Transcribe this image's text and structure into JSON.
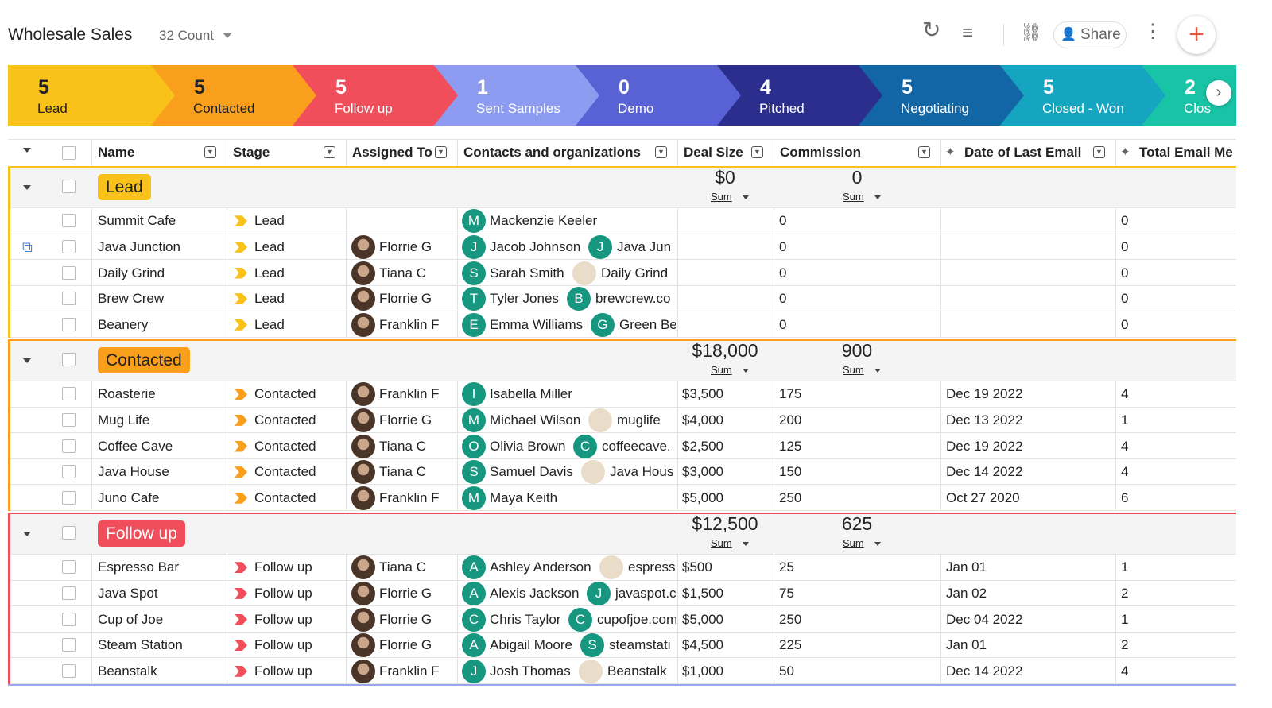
{
  "header": {
    "title": "Wholesale Sales",
    "count": "32 Count",
    "share": "Share"
  },
  "pipeline": [
    {
      "count": "5",
      "label": "Lead",
      "color": "#f8c21b"
    },
    {
      "count": "5",
      "label": "Contacted",
      "color": "#fa9f1c"
    },
    {
      "count": "5",
      "label": "Follow up",
      "color": "#f14e5c"
    },
    {
      "count": "1",
      "label": "Sent Samples",
      "color": "#8d9cf0"
    },
    {
      "count": "0",
      "label": "Demo",
      "color": "#5962d4"
    },
    {
      "count": "4",
      "label": "Pitched",
      "color": "#2b2e8d"
    },
    {
      "count": "5",
      "label": "Negotiating",
      "color": "#1366a5"
    },
    {
      "count": "5",
      "label": "Closed - Won",
      "color": "#15a5c0"
    },
    {
      "count": "2",
      "label": "Clos",
      "color": "#19c3a6"
    }
  ],
  "table": {
    "columns": [
      "Name",
      "Stage",
      "Assigned To",
      "Contacts and organizations",
      "Deal Size",
      "Commission",
      "Date of Last Email",
      "Total Email Me"
    ],
    "groups": [
      {
        "name": "Lead",
        "color": "#f8c21b",
        "deal_sum": "$0",
        "commission_sum": "0",
        "sum_label": "Sum",
        "rows": [
          {
            "name": "Summit Cafe",
            "stage": "Lead",
            "contact": {
              "initial": "M",
              "name": "Mackenzie Keeler"
            },
            "commission": "0",
            "emails": "0"
          },
          {
            "name": "Java Junction",
            "stage": "Lead",
            "assignee": "Florrie G",
            "contact": {
              "initial": "J",
              "name": "Jacob Johnson"
            },
            "org": {
              "initial": "J",
              "name": "Java Jun"
            },
            "commission": "0",
            "emails": "0"
          },
          {
            "name": "Daily Grind",
            "stage": "Lead",
            "assignee": "Tiana C",
            "contact": {
              "initial": "S",
              "name": "Sarah Smith"
            },
            "org": {
              "name": "Daily Grind"
            },
            "commission": "0",
            "emails": "0"
          },
          {
            "name": "Brew Crew",
            "stage": "Lead",
            "assignee": "Florrie G",
            "contact": {
              "initial": "T",
              "name": "Tyler Jones"
            },
            "org": {
              "initial": "B",
              "name": "brewcrew.co"
            },
            "commission": "0",
            "emails": "0"
          },
          {
            "name": "Beanery",
            "stage": "Lead",
            "assignee": "Franklin F",
            "contact": {
              "initial": "E",
              "name": "Emma Williams"
            },
            "org": {
              "initial": "G",
              "name": "Green Be"
            },
            "commission": "0",
            "emails": "0"
          }
        ]
      },
      {
        "name": "Contacted",
        "color": "#fa9f1c",
        "deal_sum": "$18,000",
        "commission_sum": "900",
        "sum_label": "Sum",
        "rows": [
          {
            "name": "Roasterie",
            "stage": "Contacted",
            "assignee": "Franklin F",
            "contact": {
              "initial": "I",
              "name": "Isabella Miller"
            },
            "deal": "$3,500",
            "commission": "175",
            "date": "Dec 19 2022",
            "emails": "4"
          },
          {
            "name": "Mug Life",
            "stage": "Contacted",
            "assignee": "Florrie G",
            "contact": {
              "initial": "M",
              "name": "Michael Wilson"
            },
            "org": {
              "name": "muglife"
            },
            "deal": "$4,000",
            "commission": "200",
            "date": "Dec 13 2022",
            "emails": "1"
          },
          {
            "name": "Coffee Cave",
            "stage": "Contacted",
            "assignee": "Tiana C",
            "contact": {
              "initial": "O",
              "name": "Olivia Brown"
            },
            "org": {
              "initial": "C",
              "name": "coffeecave."
            },
            "deal": "$2,500",
            "commission": "125",
            "date": "Dec 19 2022",
            "emails": "4"
          },
          {
            "name": "Java House",
            "stage": "Contacted",
            "assignee": "Tiana C",
            "contact": {
              "initial": "S",
              "name": "Samuel Davis"
            },
            "org": {
              "name": "Java Hous"
            },
            "deal": "$3,000",
            "commission": "150",
            "date": "Dec 14 2022",
            "emails": "4"
          },
          {
            "name": "Juno Cafe",
            "stage": "Contacted",
            "assignee": "Franklin F",
            "contact": {
              "initial": "M",
              "name": "Maya Keith"
            },
            "deal": "$5,000",
            "commission": "250",
            "date": "Oct 27 2020",
            "emails": "6"
          }
        ]
      },
      {
        "name": "Follow up",
        "color": "#f14e5c",
        "deal_sum": "$12,500",
        "commission_sum": "625",
        "sum_label": "Sum",
        "rows": [
          {
            "name": "Espresso Bar",
            "stage": "Follow up",
            "assignee": "Tiana C",
            "contact": {
              "initial": "A",
              "name": "Ashley Anderson"
            },
            "org": {
              "name": "espress"
            },
            "deal": "$500",
            "commission": "25",
            "date": "Jan 01",
            "emails": "1"
          },
          {
            "name": "Java Spot",
            "stage": "Follow up",
            "assignee": "Florrie G",
            "contact": {
              "initial": "A",
              "name": "Alexis Jackson"
            },
            "org": {
              "initial": "J",
              "name": "javaspot.c"
            },
            "deal": "$1,500",
            "commission": "75",
            "date": "Jan 02",
            "emails": "2"
          },
          {
            "name": "Cup of Joe",
            "stage": "Follow up",
            "assignee": "Florrie G",
            "contact": {
              "initial": "C",
              "name": "Chris Taylor"
            },
            "org": {
              "initial": "C",
              "name": "cupofjoe.com"
            },
            "deal": "$5,000",
            "commission": "250",
            "date": "Dec 04 2022",
            "emails": "1"
          },
          {
            "name": "Steam Station",
            "stage": "Follow up",
            "assignee": "Florrie G",
            "contact": {
              "initial": "A",
              "name": "Abigail Moore"
            },
            "org": {
              "initial": "S",
              "name": "steamstati"
            },
            "deal": "$4,500",
            "commission": "225",
            "date": "Jan 01",
            "emails": "2"
          },
          {
            "name": "Beanstalk",
            "stage": "Follow up",
            "assignee": "Franklin F",
            "contact": {
              "initial": "J",
              "name": "Josh Thomas"
            },
            "org": {
              "name": "Beanstalk"
            },
            "deal": "$1,000",
            "commission": "50",
            "date": "Dec 14 2022",
            "emails": "4"
          }
        ]
      }
    ]
  }
}
